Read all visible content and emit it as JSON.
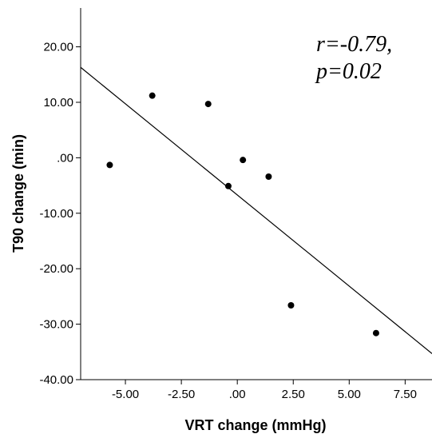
{
  "chart_data": {
    "type": "scatter",
    "xlabel": "VRT change (mmHg)",
    "ylabel": "T90 change (min)",
    "xlim": [
      -7,
      8.7
    ],
    "ylim": [
      -40,
      27
    ],
    "x_ticks": [
      -5,
      -2.5,
      0,
      2.5,
      5,
      7.5
    ],
    "x_tick_labels": [
      "-5.00",
      "-2.50",
      ".00",
      "2.50",
      "5.00",
      "7.50"
    ],
    "y_ticks": [
      20,
      10,
      0,
      -10,
      -20,
      -30,
      -40
    ],
    "y_tick_labels": [
      "20.00",
      "10.00",
      ".00",
      "-10.00",
      "-20.00",
      "-30.00",
      "-40.00"
    ],
    "points": [
      {
        "x": -5.7,
        "y": -1.3
      },
      {
        "x": -3.8,
        "y": 11.2
      },
      {
        "x": -1.3,
        "y": 9.7
      },
      {
        "x": -0.4,
        "y": -5.1
      },
      {
        "x": 0.25,
        "y": -0.4
      },
      {
        "x": 1.4,
        "y": -3.4
      },
      {
        "x": 2.4,
        "y": -26.6
      },
      {
        "x": 6.2,
        "y": -31.6
      }
    ],
    "fit_line": {
      "x": [
        -7,
        8.7
      ],
      "y": [
        16.3,
        -35.3
      ]
    },
    "annotation_lines": [
      "r=-0.79,",
      "p=0.02"
    ],
    "grid": false,
    "legend": "none"
  }
}
